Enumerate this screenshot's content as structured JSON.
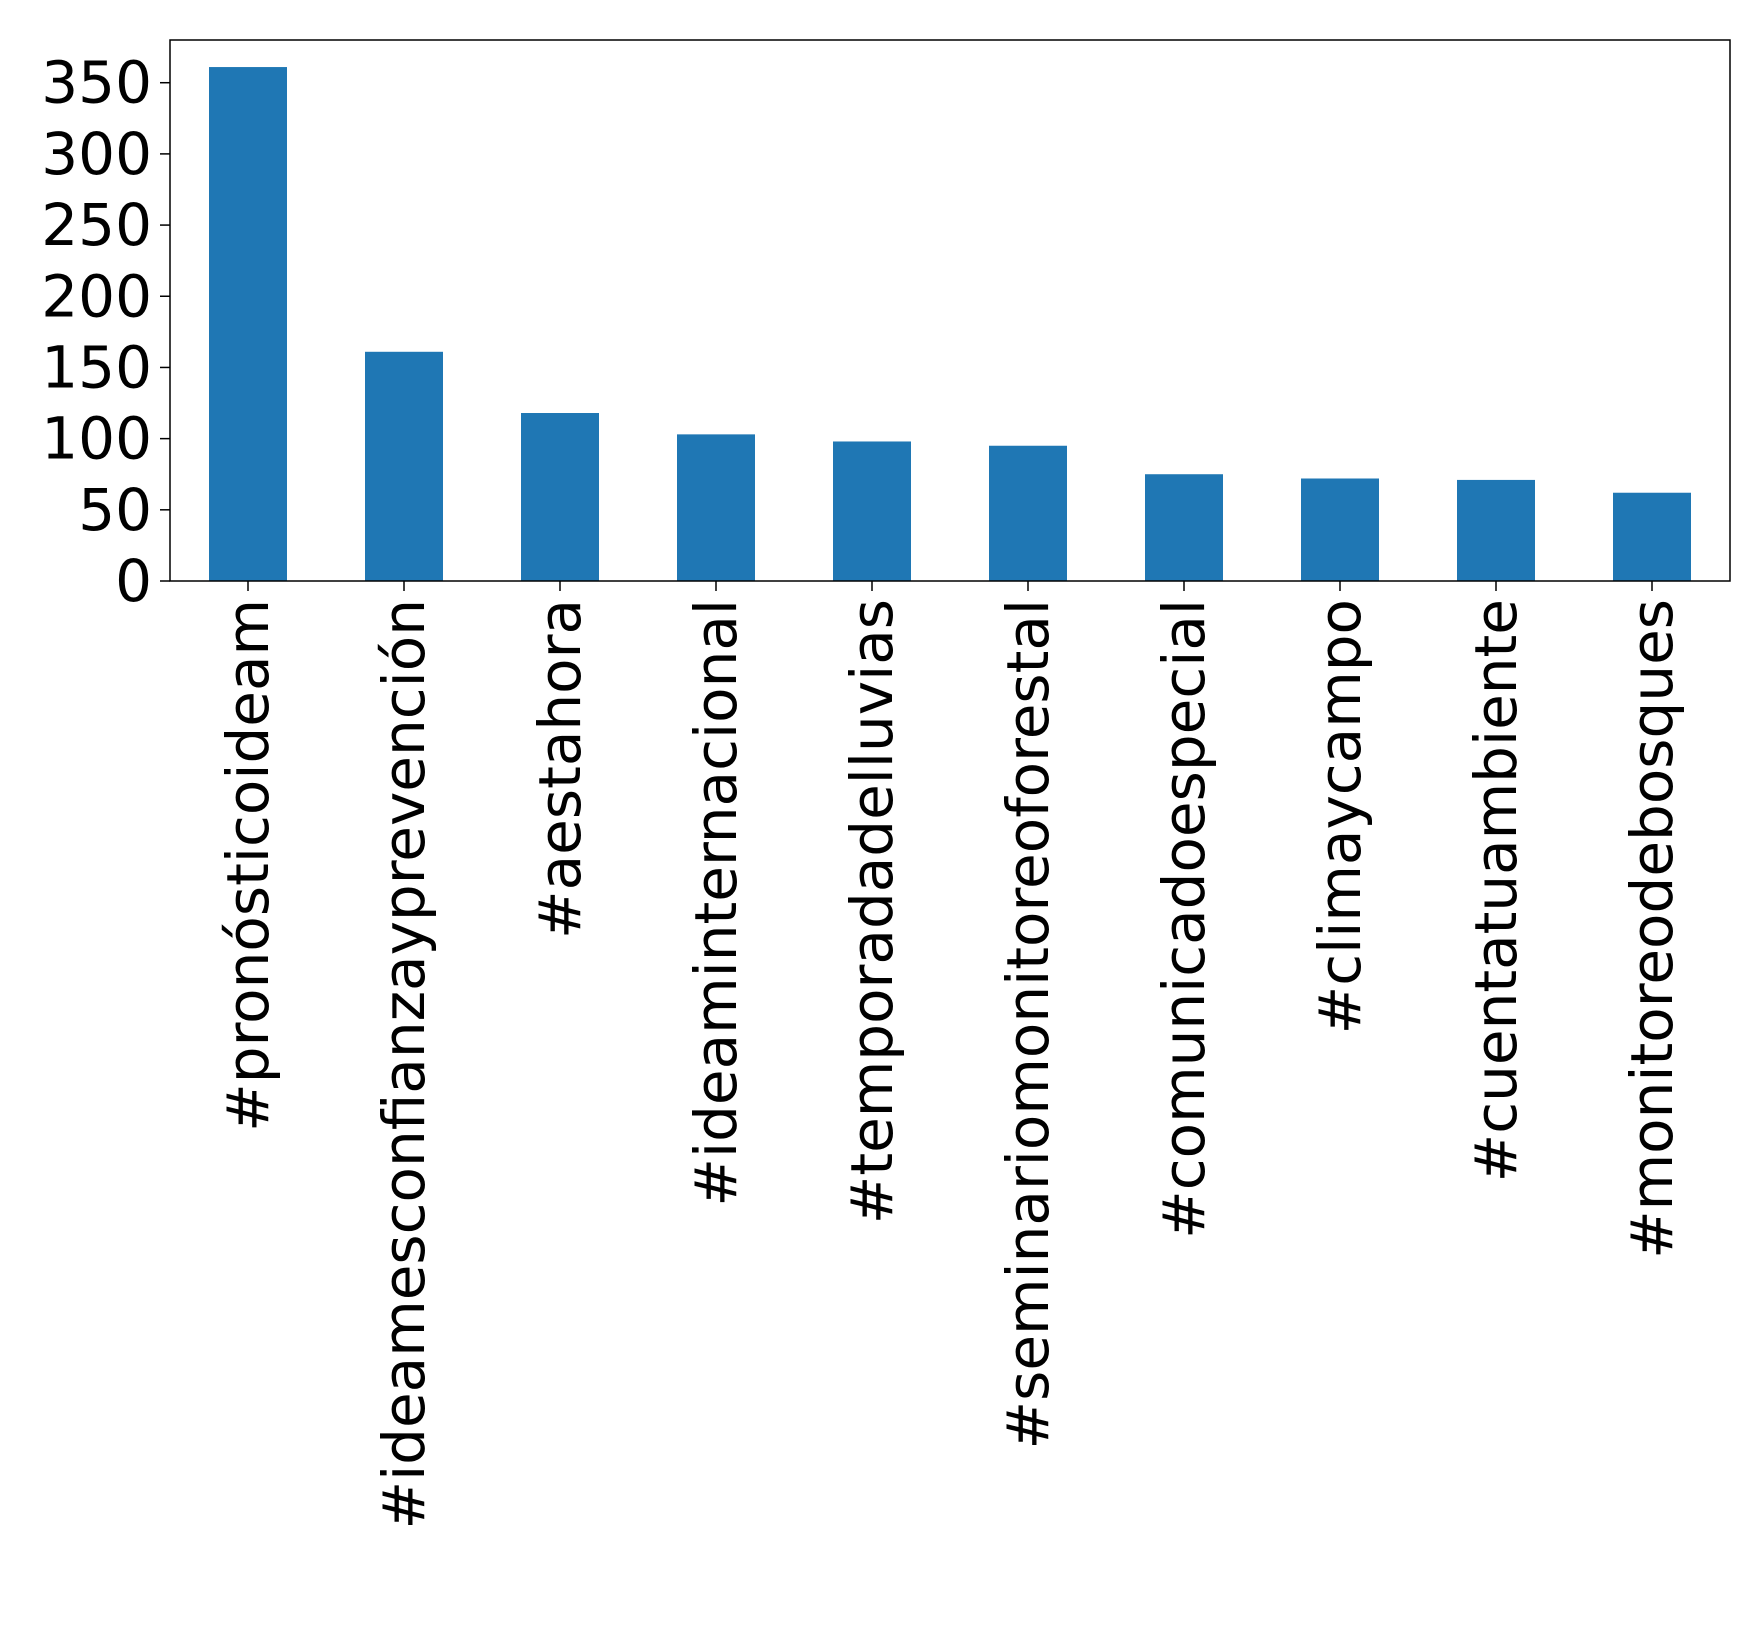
{
  "chart_data": {
    "type": "bar",
    "title": "",
    "xlabel": "",
    "ylabel": "",
    "categories": [
      "#pronósticoideam",
      "#ideamesconfianzayprevención",
      "#aestahora",
      "#ideaminternacional",
      "#temporadadelluvias",
      "#seminariomonitoreoforestal",
      "#comunicadoespecial",
      "#climaycampo",
      "#cuentatuambiente",
      "#monitoreodebosques"
    ],
    "values": [
      361,
      161,
      118,
      103,
      98,
      95,
      75,
      72,
      71,
      62
    ],
    "ylim": [
      0,
      380
    ],
    "yticks": [
      0,
      50,
      100,
      150,
      200,
      250,
      300,
      350
    ],
    "grid": false,
    "legend": "none",
    "colors": {
      "bar": "#1f77b4",
      "axis": "#000000",
      "background": "#ffffff"
    }
  }
}
